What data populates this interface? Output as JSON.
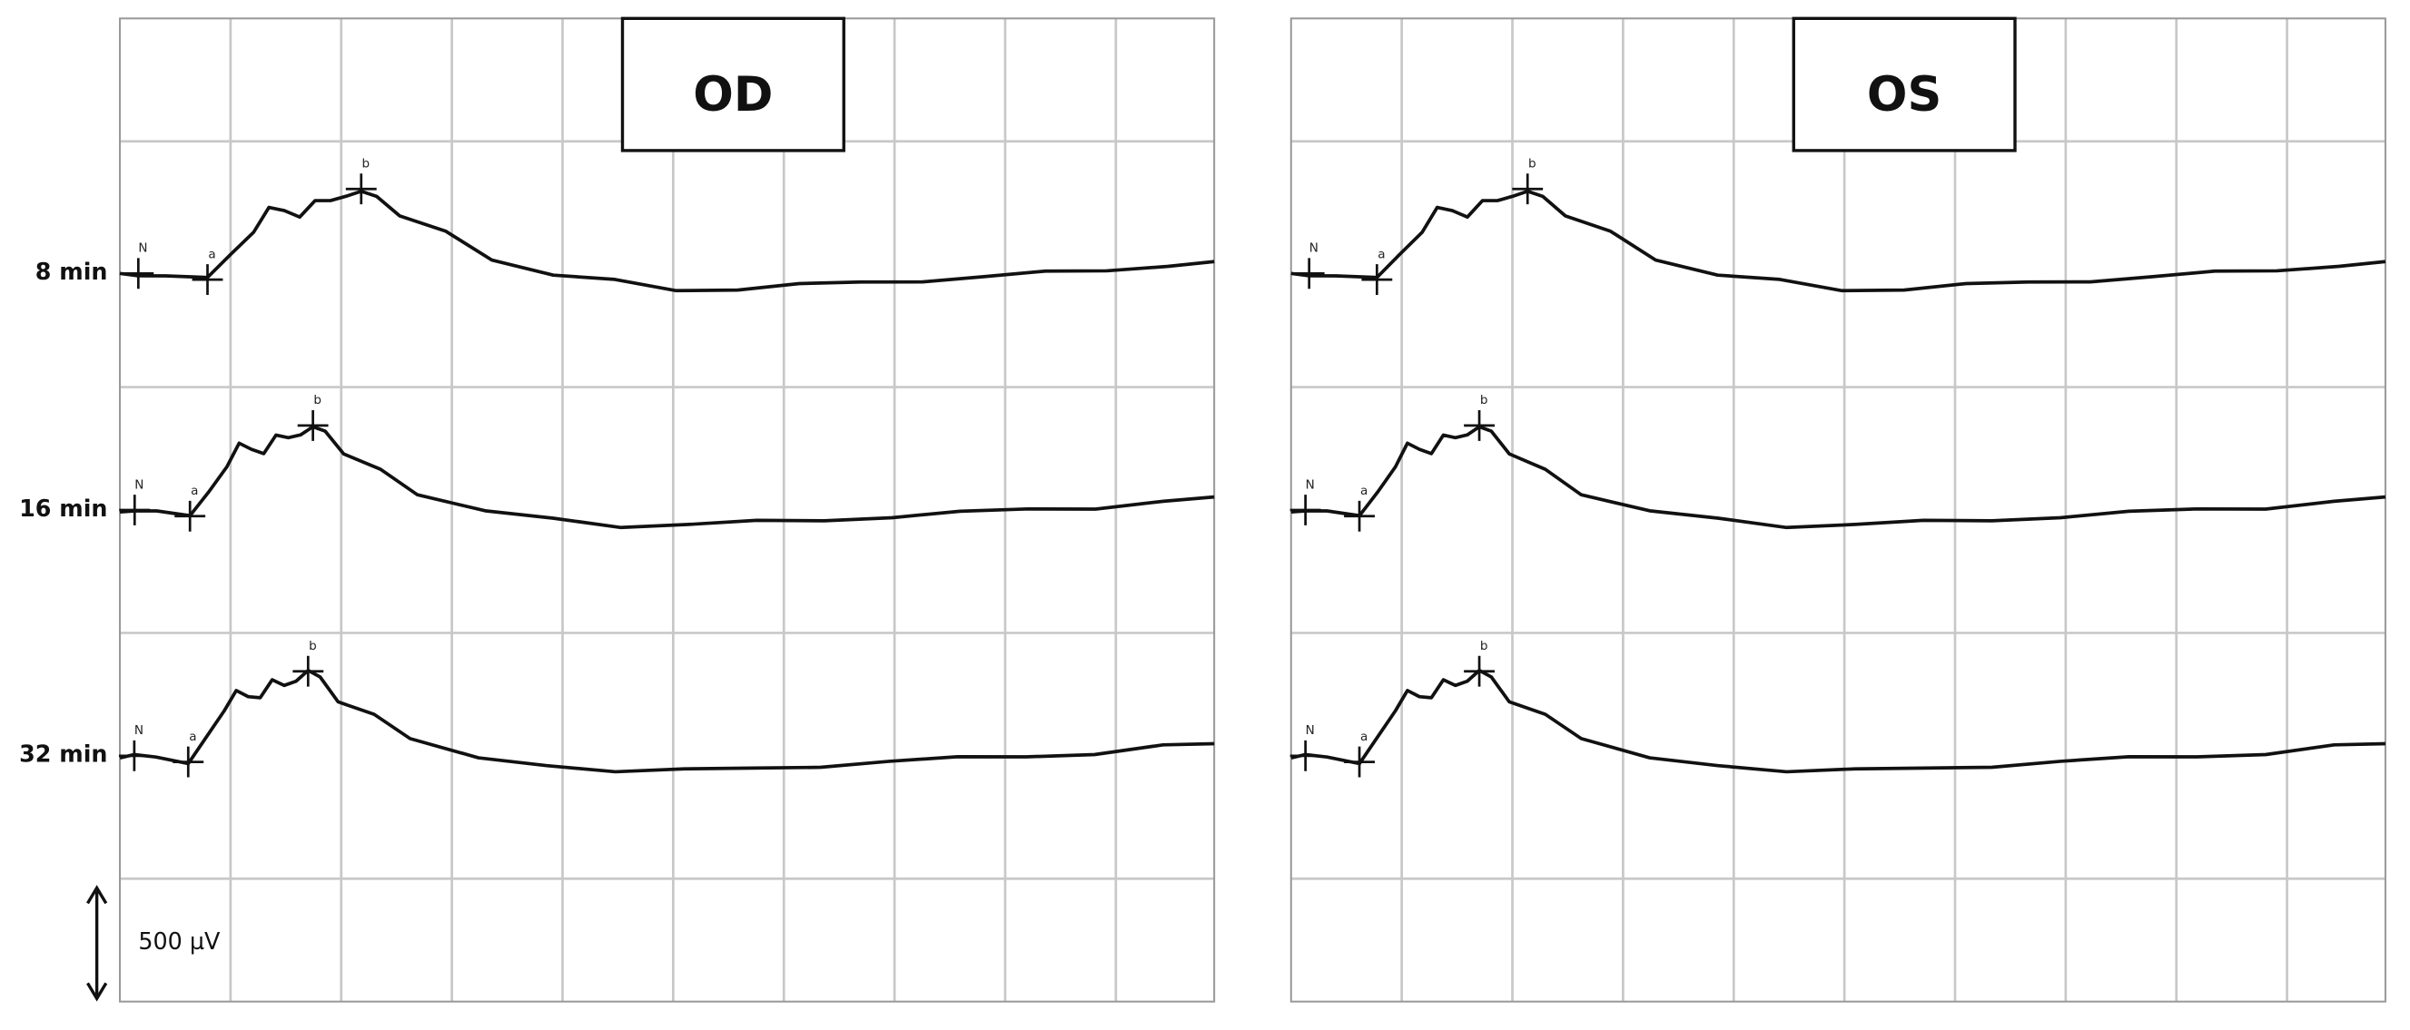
{
  "rows": [
    "8 min",
    "16 min",
    "32 min"
  ],
  "panels": [
    {
      "title": "OD",
      "traces": [
        {
          "markers": [
            "N",
            "a",
            "b"
          ]
        },
        {
          "markers": [
            "N",
            "a",
            "b"
          ]
        },
        {
          "markers": [
            "N",
            "a",
            "b"
          ]
        }
      ]
    },
    {
      "title": "OS",
      "traces": [
        {
          "markers": [
            "N",
            "a",
            "b"
          ]
        },
        {
          "markers": [
            "N",
            "a",
            "b"
          ]
        },
        {
          "markers": [
            "N",
            "a",
            "b"
          ]
        }
      ]
    }
  ],
  "scale": "500 µV"
}
